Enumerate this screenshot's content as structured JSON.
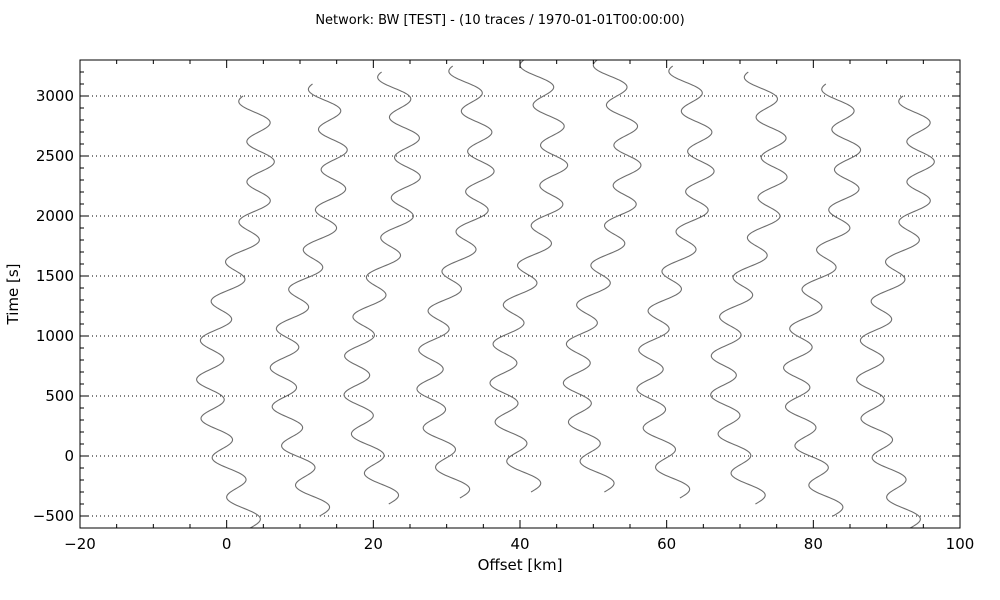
{
  "chart_data": {
    "type": "line",
    "title": "Network: BW [TEST] - (10 traces / 1970-01-01T00:00:00)",
    "xlabel": "Offset [km]",
    "ylabel": "Time [s]",
    "xlim": [
      -20,
      100
    ],
    "ylim": [
      -600,
      3300
    ],
    "x_ticks": [
      -20,
      0,
      20,
      40,
      60,
      80,
      100
    ],
    "x_tick_labels": [
      "−20",
      "0",
      "20",
      "40",
      "60",
      "80",
      "100"
    ],
    "y_ticks": [
      -500,
      0,
      500,
      1000,
      1500,
      2000,
      2500,
      3000
    ],
    "y_tick_labels": [
      "−500",
      "0",
      "500",
      "1000",
      "1500",
      "2000",
      "2500",
      "3000"
    ],
    "grid": "horizontal-dotted",
    "line_color": "#6e6e6e",
    "traces": [
      {
        "offset": 0,
        "start": -600,
        "end": 3000
      },
      {
        "offset": 10,
        "start": -500,
        "end": 3100
      },
      {
        "offset": 20,
        "start": -400,
        "end": 3200
      },
      {
        "offset": 30,
        "start": -350,
        "end": 3250
      },
      {
        "offset": 40,
        "start": -300,
        "end": 3300
      },
      {
        "offset": 50,
        "start": -300,
        "end": 3300
      },
      {
        "offset": 60,
        "start": -350,
        "end": 3250
      },
      {
        "offset": 70,
        "start": -400,
        "end": 3200
      },
      {
        "offset": 80,
        "start": -500,
        "end": 3100
      },
      {
        "offset": 90,
        "start": -600,
        "end": 3000
      }
    ]
  }
}
